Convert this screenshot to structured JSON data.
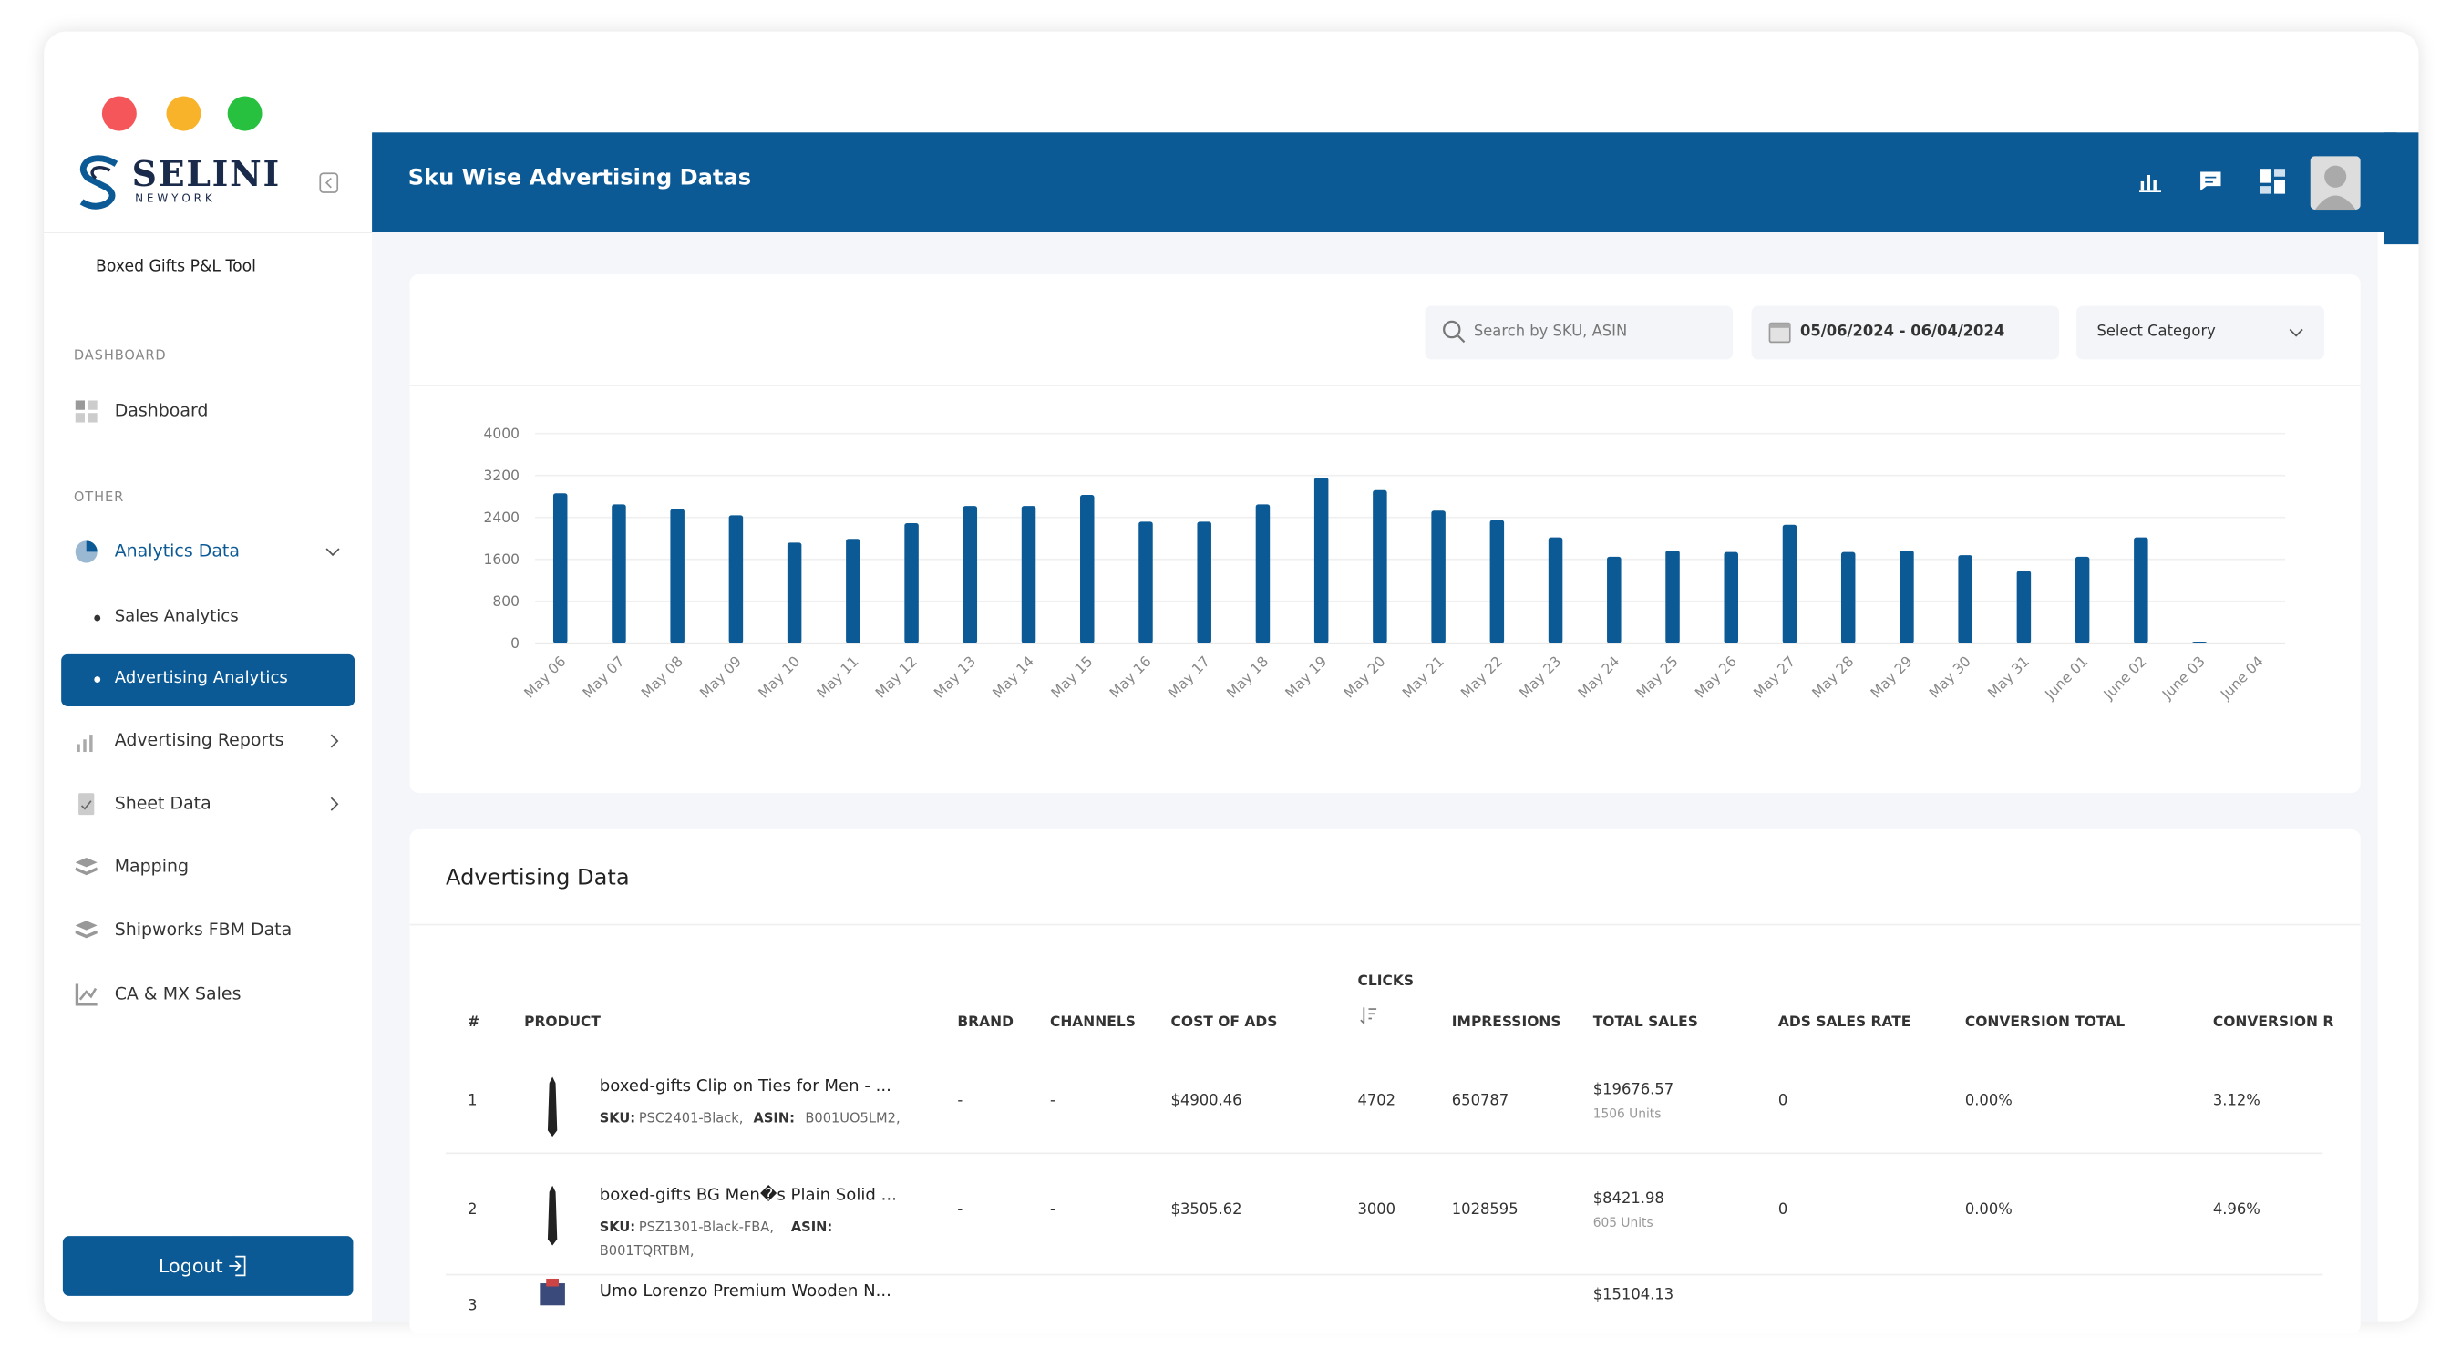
{
  "sidebar": {
    "brand": "SELINI",
    "brand_sub": "N E W Y O R K",
    "tool": "Boxed Gifts P&L Tool",
    "section_dashboard": "DASHBOARD",
    "dashboard": "Dashboard",
    "section_other": "OTHER",
    "analytics": "Analytics Data",
    "sales_analytics": "Sales Analytics",
    "advertising_analytics": "Advertising Analytics",
    "advertising_reports": "Advertising Reports",
    "sheet_data": "Sheet Data",
    "mapping": "Mapping",
    "shipworks": "Shipworks FBM Data",
    "ca_mx": "CA & MX Sales",
    "logout": "Logout"
  },
  "header": {
    "title": "Sku Wise Advertising Datas"
  },
  "filters": {
    "search": "Search by SKU, ASIN",
    "date_range": "05/06/2024 - 06/04/2024",
    "category": "Select Category"
  },
  "chart_data": {
    "type": "bar",
    "color": "#0b5a96",
    "categories": [
      "May 06",
      "May 07",
      "May 08",
      "May 09",
      "May 10",
      "May 11",
      "May 12",
      "May 13",
      "May 14",
      "May 15",
      "May 16",
      "May 17",
      "May 18",
      "May 19",
      "May 20",
      "May 21",
      "May 22",
      "May 23",
      "May 24",
      "May 25",
      "May 26",
      "May 27",
      "May 28",
      "May 29",
      "May 30",
      "May 31",
      "June 01",
      "June 02",
      "June 03",
      "June 04"
    ],
    "values": [
      2860,
      2650,
      2560,
      2440,
      1920,
      1990,
      2290,
      2620,
      2620,
      2830,
      2320,
      2320,
      2650,
      3160,
      2920,
      2530,
      2350,
      2020,
      1650,
      1770,
      1740,
      2260,
      1740,
      1770,
      1680,
      1380,
      1650,
      2020,
      30,
      0
    ],
    "ylim": [
      0,
      4000
    ],
    "yticks": [
      0,
      800,
      1600,
      2400,
      3200,
      4000
    ],
    "grid": true
  },
  "table": {
    "title": "Advertising Data",
    "columns": [
      "#",
      "PRODUCT",
      "BRAND",
      "CHANNELS",
      "COST OF ADS",
      "CLICKS",
      "IMPRESSIONS",
      "TOTAL SALES",
      "ADS SALES RATE",
      "CONVERSION TOTAL",
      "CONVERSION R"
    ],
    "sku_label": "SKU:",
    "asin_label": "ASIN:",
    "rows": [
      {
        "index": "1",
        "product": "boxed-gifts Clip on Ties for Men - ...",
        "sku": "PSC2401-Black,",
        "asin": "B001UO5LM2,",
        "brand": "-",
        "channels": "-",
        "cost": "$4900.46",
        "clicks": "4702",
        "impressions": "650787",
        "total_sales": "$19676.57",
        "units": "1506 Units",
        "ads_sales_rate": "0",
        "conversion_total": "0.00%",
        "conversion_rate": "3.12%"
      },
      {
        "index": "2",
        "product": "boxed-gifts BG Men�s Plain Solid ...",
        "sku": "PSZ1301-Black-FBA,",
        "asin": "B001TQRTBM,",
        "brand": "-",
        "channels": "-",
        "cost": "$3505.62",
        "clicks": "3000",
        "impressions": "1028595",
        "total_sales": "$8421.98",
        "units": "605 Units",
        "ads_sales_rate": "0",
        "conversion_total": "0.00%",
        "conversion_rate": "4.96%"
      },
      {
        "index": "3",
        "product": "Umo Lorenzo Premium Wooden N...",
        "total_sales": "$15104.13"
      }
    ]
  }
}
